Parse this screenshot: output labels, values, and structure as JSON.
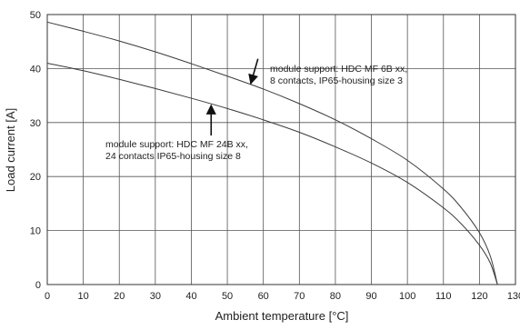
{
  "chart_data": {
    "type": "line",
    "xlabel": "Ambient temperature [°C]",
    "ylabel": "Load current [A]",
    "xlim": [
      0,
      130
    ],
    "ylim": [
      0,
      50
    ],
    "xticks": [
      0,
      10,
      20,
      30,
      40,
      50,
      60,
      70,
      80,
      90,
      100,
      110,
      120,
      130
    ],
    "yticks": [
      0,
      10,
      20,
      30,
      40,
      50
    ],
    "grid": true,
    "series": [
      {
        "x": [
          0,
          10,
          20,
          30,
          40,
          50,
          60,
          70,
          80,
          90,
          100,
          110,
          115,
          120,
          123,
          125
        ],
        "y": [
          48.6,
          46.9,
          45.1,
          43.1,
          40.9,
          38.6,
          36.2,
          33.5,
          30.5,
          27.0,
          23.0,
          17.7,
          14.2,
          9.6,
          5.3,
          0
        ]
      },
      {
        "x": [
          0,
          10,
          20,
          30,
          40,
          50,
          60,
          70,
          80,
          90,
          100,
          110,
          115,
          120,
          123,
          125
        ],
        "y": [
          41.0,
          39.6,
          38.0,
          36.3,
          34.5,
          32.6,
          30.5,
          28.2,
          25.5,
          22.5,
          18.9,
          14.2,
          11.2,
          7.3,
          4.0,
          0
        ]
      }
    ],
    "annotations": [
      {
        "lines": [
          "module support: HDC MF 6B xx,",
          "8 contacts, IP65-housing size 3"
        ],
        "arrow_from": [
          58.5,
          41.8
        ],
        "arrow_to": [
          56.5,
          37.2
        ]
      },
      {
        "lines": [
          "module support: HDC MF 24B xx,",
          "24 contacts IP65-housing size 8"
        ],
        "arrow_from": [
          45.5,
          27.6
        ],
        "arrow_to": [
          45.5,
          33.2
        ]
      }
    ]
  }
}
